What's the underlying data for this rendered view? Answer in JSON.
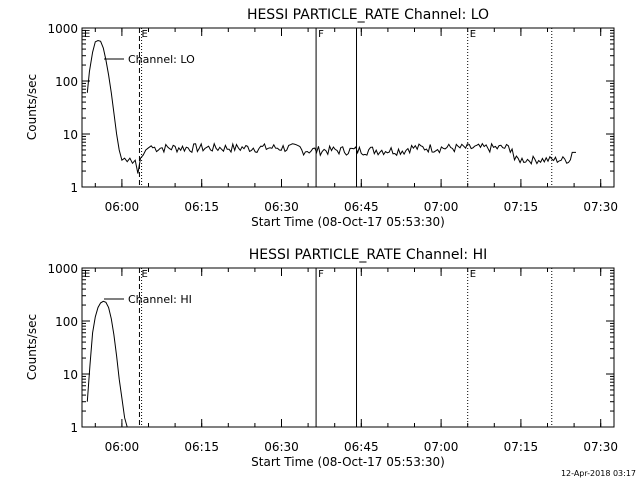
{
  "footer_stamp": "12-Apr-2018 03:17",
  "chart_data": [
    {
      "type": "line",
      "title": "HESSI PARTICLE_RATE Channel: LO",
      "xlabel": "Start Time (08-Oct-17 05:53:30)",
      "ylabel": "Counts/sec",
      "yscale": "log",
      "ylim": [
        1,
        1000
      ],
      "y_ticks": [
        "1",
        "10",
        "100",
        "1000"
      ],
      "x_range_min": [
        -5.5,
        31.5
      ],
      "x_ticks": [
        "06:00",
        "06:15",
        "06:30",
        "06:45",
        "07:00",
        "07:15",
        "07:30"
      ],
      "legend": "Channel: LO",
      "grid": false,
      "markers": [
        {
          "label": "E",
          "style": "dashed",
          "t": 9.8
        },
        {
          "label": "",
          "style": "dotted",
          "t": 10.2
        },
        {
          "label": "F",
          "style": "solid",
          "t": 43.0
        },
        {
          "label": "",
          "style": "solid",
          "t": 50.6
        },
        {
          "label": "E",
          "style": "dotted",
          "t": 71.5
        },
        {
          "label": "",
          "style": "dotted",
          "t": 87.3
        }
      ],
      "marker_letters_top_left": [
        "E"
      ],
      "series": [
        {
          "name": "Channel: LO",
          "x_minutes_from_0553": [
            0,
            0.4,
            1.0,
            1.5,
            2.0,
            2.5,
            3.0,
            3.5,
            4.0,
            4.5,
            5.0,
            5.5,
            6.0,
            6.5,
            7.0,
            7.5,
            8.0,
            8.5,
            9.0,
            9.5,
            10.0,
            10.5,
            11.0,
            11.5,
            12.0
          ],
          "y": [
            60,
            150,
            350,
            550,
            580,
            560,
            420,
            250,
            130,
            60,
            25,
            10,
            5,
            3.2,
            3.5,
            3.0,
            3.5,
            2.8,
            3.2,
            1.8,
            3.5,
            4.0,
            5.0,
            5.5,
            6.0
          ],
          "baseline_level": 5.5,
          "late_level": 3.2
        }
      ]
    },
    {
      "type": "line",
      "title": "HESSI PARTICLE_RATE Channel: HI",
      "xlabel": "Start Time (08-Oct-17 05:53:30)",
      "ylabel": "Counts/sec",
      "yscale": "log",
      "ylim": [
        1,
        1000
      ],
      "y_ticks": [
        "1",
        "10",
        "100",
        "1000"
      ],
      "x_ticks": [
        "06:00",
        "06:15",
        "06:30",
        "06:45",
        "07:00",
        "07:15",
        "07:30"
      ],
      "legend": "Channel: HI",
      "grid": false,
      "markers": [
        {
          "label": "E",
          "style": "dashed",
          "t": 9.8
        },
        {
          "label": "",
          "style": "dotted",
          "t": 10.2
        },
        {
          "label": "F",
          "style": "solid",
          "t": 43.0
        },
        {
          "label": "",
          "style": "solid",
          "t": 50.6
        },
        {
          "label": "E",
          "style": "dotted",
          "t": 71.5
        },
        {
          "label": "",
          "style": "dotted",
          "t": 87.3
        }
      ],
      "series": [
        {
          "name": "Channel: HI",
          "x_minutes_from_0553": [
            0,
            0.5,
            1.0,
            1.5,
            2.0,
            2.5,
            3.0,
            3.5,
            4.0,
            4.5,
            5.0,
            5.5,
            6.0,
            6.5,
            7.0,
            7.5
          ],
          "y": [
            3,
            15,
            60,
            120,
            180,
            220,
            235,
            225,
            180,
            110,
            55,
            22,
            8,
            3.5,
            1.5,
            1
          ]
        }
      ]
    }
  ]
}
